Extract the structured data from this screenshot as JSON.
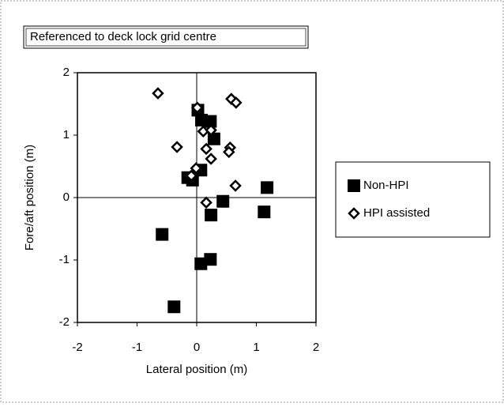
{
  "chart_data": {
    "type": "scatter",
    "title": "Referenced to deck lock grid centre",
    "x_label": "Lateral position (m)",
    "y_label": "Fore/aft position (m)",
    "xlim": [
      -2,
      2
    ],
    "xticks": [
      -2,
      -1,
      0,
      1,
      2
    ],
    "ylim": [
      -2,
      2
    ],
    "yticks": [
      -2,
      -1,
      0,
      1,
      2
    ],
    "legend": "right",
    "series": [
      {
        "name": "Non-HPI",
        "color": "#000000",
        "marker": "square",
        "x": [
          0.02,
          0.08,
          0.23,
          0.29,
          0.07,
          -0.15,
          -0.07,
          0.44,
          0.24,
          1.18,
          1.13,
          -0.58,
          0.23,
          0.07,
          -0.38
        ],
        "values": [
          1.4,
          1.24,
          1.22,
          0.94,
          0.44,
          0.32,
          0.28,
          -0.06,
          -0.28,
          0.16,
          -0.23,
          -0.59,
          -0.99,
          -1.06,
          -1.75
        ]
      },
      {
        "name": "HPI assisted",
        "color": "#000000",
        "marker": "diamond",
        "x": [
          -0.65,
          0.58,
          0.66,
          -0.33,
          0.56,
          0.54,
          0.16,
          0.11,
          0.24,
          0.24,
          -0.01,
          -0.09,
          0.65,
          0.16,
          0.01
        ],
        "values": [
          1.67,
          1.58,
          1.52,
          0.81,
          0.8,
          0.73,
          0.78,
          1.06,
          1.08,
          0.62,
          0.47,
          0.35,
          0.19,
          -0.08,
          1.44
        ]
      }
    ]
  }
}
